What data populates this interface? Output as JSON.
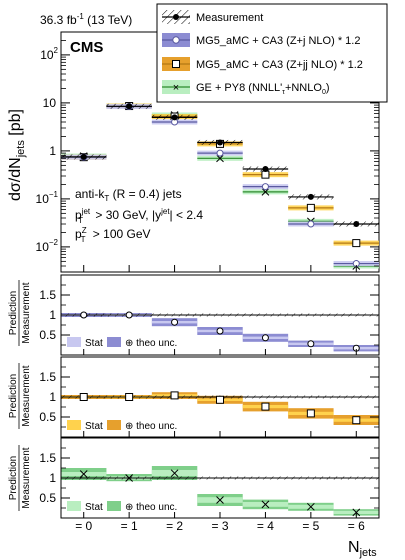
{
  "header": {
    "lumi": "36.3 fb",
    "lumi_sup": "-1",
    "energy": "(13 TeV)",
    "experiment": "CMS"
  },
  "legend": [
    {
      "label": "Measurement",
      "style": "data"
    },
    {
      "label": "MG5_aMC + CA3 (Z+j NLO) * 1.2",
      "style": "mg5j"
    },
    {
      "label": "MG5_aMC + CA3 (Z+jj NLO) * 1.2",
      "style": "mg5jj"
    },
    {
      "label": "GE + PY8 (NNLL'",
      "label_sub": "τ",
      "label_tail": "+NNLO",
      "label_sub2": "0",
      "label_end": ")",
      "style": "ge"
    }
  ],
  "annotations": {
    "algo_pre": "anti-k",
    "algo_sub": "T",
    "algo_post": " (R = 0.4) jets",
    "cut1_a": "p",
    "cut1_sup": "jet",
    "cut1_sub": "T",
    "cut1_b": " > 30 GeV, |y",
    "cut1_sup2": "jet",
    "cut1_c": "| < 2.4",
    "cut2_a": "p",
    "cut2_sup": "Z",
    "cut2_sub": "T",
    "cut2_b": " > 100 GeV"
  },
  "axes": {
    "ylabel_main_a": "dσ/dN",
    "ylabel_main_sub": "jets",
    "ylabel_main_unit": " [pb]",
    "ylabel_ratio_top": "Prediction",
    "ylabel_ratio_bottom": "Measurement",
    "xlabel": "N",
    "xlabel_sub": "jets",
    "main_ticks": [
      "10",
      "10",
      "1",
      "10",
      "10"
    ],
    "main_tick_exps": [
      "2",
      "",
      "",
      "−1",
      "−2"
    ],
    "ratio_ticks": [
      "1.5",
      "1",
      "0.5"
    ],
    "x_ticks": [
      "= 0",
      "= 1",
      "= 2",
      "= 3",
      "= 4",
      "= 5",
      "= 6"
    ]
  },
  "ratio_legends": [
    {
      "stat": "Stat",
      "theo": "⊕ theo unc."
    },
    {
      "stat": "Stat",
      "theo": "⊕ theo unc."
    },
    {
      "stat": "Stat",
      "theo": "⊕ theo unc."
    }
  ],
  "colors": {
    "mg5j_light": "#c8c8f0",
    "mg5j_dark": "#8c8cd2",
    "mg5j_line": "#5a5aa0",
    "mg5jj_light": "#ffd24d",
    "mg5jj_dark": "#e6a02d",
    "mg5jj_line": "#b47814",
    "ge_light": "#b9eec0",
    "ge_dark": "#7fcf8a",
    "ge_line": "#2d8a2d",
    "data": "#000000"
  },
  "chart_data": {
    "type": "bar",
    "categories": [
      "= 0",
      "= 1",
      "= 2",
      "= 3",
      "= 4",
      "= 5",
      "= 6"
    ],
    "main": {
      "yscale": "log",
      "ylim": [
        0.003,
        300
      ],
      "measurement": [
        0.75,
        8.5,
        5.0,
        1.5,
        0.42,
        0.11,
        0.03
      ],
      "mg5_zj": [
        0.74,
        8.4,
        4.0,
        0.9,
        0.18,
        0.03,
        0.0045
      ],
      "mg5_zjj": [
        0.74,
        8.6,
        5.2,
        1.4,
        0.32,
        0.065,
        0.012
      ],
      "ge_py8": [
        0.78,
        8.6,
        5.6,
        0.7,
        0.14,
        0.034,
        0.004
      ]
    },
    "ratios": {
      "ylim": [
        0,
        2
      ],
      "mg5_zj": [
        1.0,
        1.0,
        0.82,
        0.6,
        0.43,
        0.28,
        0.17
      ],
      "mg5_zj_band": [
        [
          0.98,
          1.02,
          0.95,
          1.05
        ],
        [
          0.97,
          1.03,
          0.95,
          1.05
        ],
        [
          0.79,
          0.85,
          0.72,
          0.92
        ],
        [
          0.57,
          0.63,
          0.5,
          0.7
        ],
        [
          0.4,
          0.46,
          0.33,
          0.53
        ],
        [
          0.25,
          0.31,
          0.2,
          0.36
        ],
        [
          0.14,
          0.2,
          0.09,
          0.25
        ]
      ],
      "mg5_zjj": [
        1.0,
        1.0,
        1.04,
        0.93,
        0.76,
        0.59,
        0.42
      ],
      "mg5_zjj_band": [
        [
          0.98,
          1.02,
          0.95,
          1.05
        ],
        [
          0.97,
          1.03,
          0.95,
          1.05
        ],
        [
          1.01,
          1.07,
          0.95,
          1.12
        ],
        [
          0.9,
          0.96,
          0.83,
          1.03
        ],
        [
          0.72,
          0.8,
          0.64,
          0.88
        ],
        [
          0.55,
          0.63,
          0.46,
          0.72
        ],
        [
          0.38,
          0.46,
          0.3,
          0.55
        ]
      ],
      "ge_py8": [
        1.1,
        1.0,
        1.12,
        0.45,
        0.34,
        0.28,
        0.14
      ],
      "ge_py8_band": [
        [
          1.05,
          1.15,
          0.95,
          1.25
        ],
        [
          0.96,
          1.04,
          0.92,
          1.1
        ],
        [
          1.05,
          1.2,
          0.95,
          1.3
        ],
        [
          0.38,
          0.52,
          0.3,
          0.6
        ],
        [
          0.28,
          0.4,
          0.22,
          0.46
        ],
        [
          0.23,
          0.33,
          0.18,
          0.38
        ],
        [
          0.1,
          0.18,
          0.06,
          0.22
        ]
      ]
    }
  }
}
